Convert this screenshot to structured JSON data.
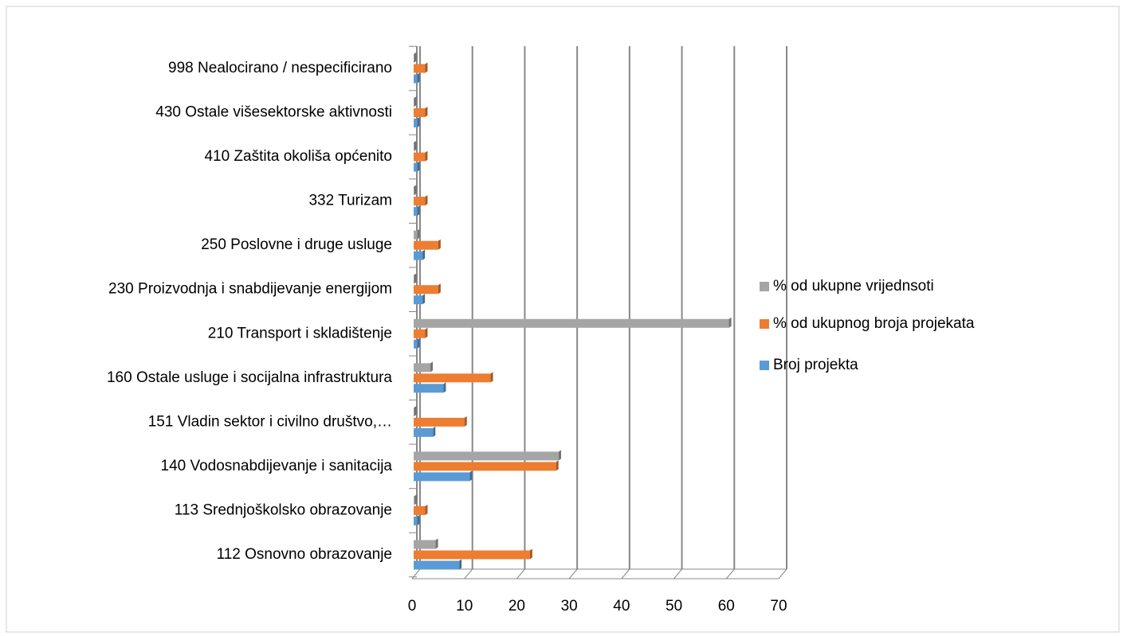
{
  "chart_data": {
    "type": "bar",
    "orientation": "horizontal",
    "categories": [
      "112 Osnovno obrazovanje",
      "113 Srednjoškolsko obrazovanje",
      "140 Vodosnabdijevanje i sanitacija",
      "151 Vladin sektor i civilno društvo,…",
      "160 Ostale usluge i socijalna infrastruktura",
      "210 Transport i skladištenje",
      "230 Proizvodnja i snabdijevanje energijom",
      "250 Poslovne i druge usluge",
      "332 Turizam",
      "410 Zaštita okoliša općenito",
      "430 Ostale višesektorske aktivnosti",
      "998 Nealocirano / nespecificirano"
    ],
    "series": [
      {
        "name": "Broj projekta",
        "color": "#5b9bd5",
        "values": [
          9,
          1,
          11,
          4,
          6,
          1,
          2,
          2,
          1,
          1,
          1,
          1
        ]
      },
      {
        "name": "% od ukupnog broja projekata",
        "color": "#ed7d31",
        "values": [
          22.5,
          2.5,
          27.5,
          10,
          15,
          2.5,
          5,
          5,
          2.5,
          2.5,
          2.5,
          2.5
        ]
      },
      {
        "name": "% od ukupne vrijednsoti",
        "color": "#a5a5a5",
        "values": [
          4.5,
          0.5,
          28,
          0.4,
          3.5,
          60.5,
          0.4,
          1,
          0.4,
          0.4,
          0.4,
          0.4
        ]
      }
    ],
    "xlim": [
      0,
      70
    ],
    "xticks": [
      0,
      10,
      20,
      30,
      40,
      50,
      60,
      70
    ],
    "grid": true,
    "legend": "right"
  }
}
